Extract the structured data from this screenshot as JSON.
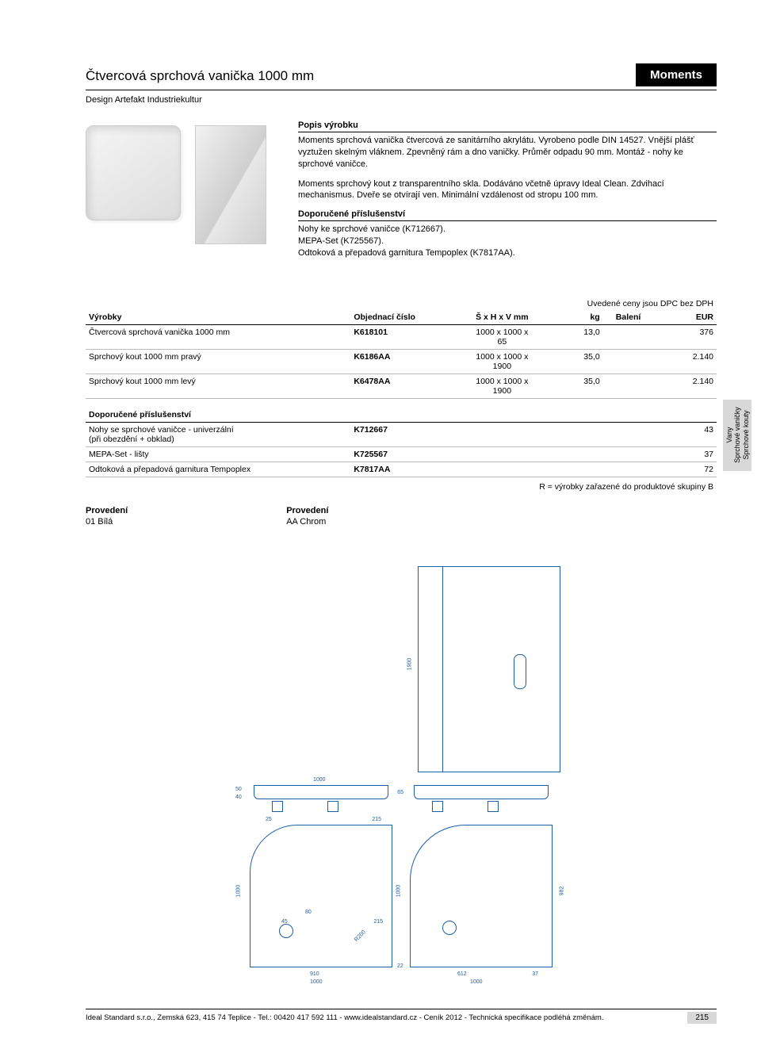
{
  "header": {
    "title": "Čtvercová sprchová vanička 1000 mm",
    "brand": "Moments",
    "subtitle": "Design Artefakt Industriekultur"
  },
  "description": {
    "heading": "Popis výrobku",
    "para1": "Moments sprchová vanička čtvercová ze sanitárního akrylátu. Vyrobeno podle DIN 14527. Vnější plášť vyztužen skelným vláknem. Zpevněný rám a dno vaničky. Průměr odpadu 90 mm. Montáž - nohy ke sprchové vaničce.",
    "para2": "Moments sprchový kout z transparentního skla. Dodáváno včetně úpravy Ideal Clean. Zdvihací mechanismus. Dveře se otvírají ven. Minimální vzdálenost od stropu 100 mm.",
    "acc_heading": "Doporučené příslušenství",
    "acc_para": "Nohy ke sprchové vaničce (K712667).\nMEPA-Set (K725567).\nOdtoková a přepadová garnitura Tempoplex (K7817AA)."
  },
  "price_note": "Uvedené ceny jsou DPC bez DPH",
  "table": {
    "headers": {
      "product": "Výrobky",
      "order": "Objednací číslo",
      "dims": "Š x H x V mm",
      "kg": "kg",
      "pack": "Balení",
      "eur": "EUR"
    },
    "main_rows": [
      {
        "name": "Čtvercová sprchová vanička 1000 mm",
        "order": "K618101",
        "dims": "1000 x 1000 x 65",
        "kg": "13,0",
        "pack": "",
        "eur": "376"
      },
      {
        "name": "Sprchový kout 1000 mm pravý",
        "order": "K6186AA",
        "dims": "1000 x 1000 x 1900",
        "kg": "35,0",
        "pack": "",
        "eur": "2.140"
      },
      {
        "name": "Sprchový kout 1000 mm levý",
        "order": "K6478AA",
        "dims": "1000 x 1000 x 1900",
        "kg": "35,0",
        "pack": "",
        "eur": "2.140"
      }
    ],
    "acc_heading": "Doporučené příslušenství",
    "acc_rows": [
      {
        "name": "Nohy se sprchové vaničce - univerzální\n(při obezdění + obklad)",
        "order": "K712667",
        "dims": "",
        "kg": "",
        "pack": "",
        "eur": "43"
      },
      {
        "name": "MEPA-Set - lišty",
        "order": "K725567",
        "dims": "",
        "kg": "",
        "pack": "",
        "eur": "37"
      },
      {
        "name": "Odtoková a přepadová garnitura Tempoplex",
        "order": "K7817AA",
        "dims": "",
        "kg": "",
        "pack": "",
        "eur": "72"
      }
    ]
  },
  "group_note": "R = výrobky zařazené do produktové skupiny B",
  "provedeni": {
    "label": "Provedení",
    "col1": "01   Bílá",
    "col2": "AA   Chrom"
  },
  "side_tab": "Vany\nSprchové vaničky\nSprchové kouty",
  "drawing_dims": {
    "w1000_a": "1000",
    "h1900": "1900",
    "d25": "25",
    "d215": "215",
    "d910": "910",
    "w1000_b": "1000",
    "h1000": "1000",
    "d45": "45",
    "d80": "80",
    "r200": "R200",
    "d50": "50",
    "d40": "40",
    "d65": "65",
    "d22": "22",
    "d612": "612",
    "d37": "37",
    "d982": "982",
    "w1000_c": "1000",
    "h1000_b": "1000"
  },
  "footer": {
    "text": "Ideal Standard s.r.o., Zemská 623, 415 74 Teplice - Tel.: 00420 417 592 111 - www.idealstandard.cz - Ceník 2012 - Technická specifikace podléhá změnám.",
    "page": "215"
  },
  "colors": {
    "drawing_stroke": "#1b5fa8",
    "brand_bg": "#000000",
    "brand_fg": "#ffffff",
    "sidetab_bg": "#d8d8d8",
    "text": "#000000"
  }
}
